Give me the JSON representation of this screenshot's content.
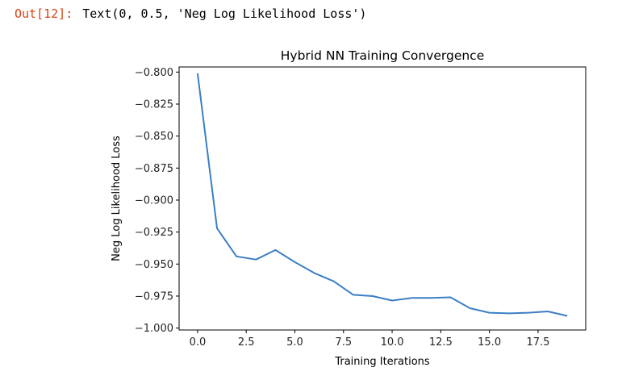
{
  "output_cell": {
    "prompt": "Out[12]:",
    "text": "Text(0, 0.5, 'Neg Log Likelihood Loss')"
  },
  "chart_data": {
    "type": "line",
    "title": "Hybrid NN Training Convergence",
    "xlabel": "Training Iterations",
    "ylabel": "Neg Log Likelihood Loss",
    "xlim": [
      -0.95,
      19.95
    ],
    "ylim": [
      -1.0,
      -0.8
    ],
    "xticks": [
      0.0,
      2.5,
      5.0,
      7.5,
      10.0,
      12.5,
      15.0,
      17.5
    ],
    "xtick_labels": [
      "0.0",
      "2.5",
      "5.0",
      "7.5",
      "10.0",
      "12.5",
      "15.0",
      "17.5"
    ],
    "yticks": [
      -0.8,
      -0.825,
      -0.85,
      -0.875,
      -0.9,
      -0.925,
      -0.95,
      -0.975,
      -1.0
    ],
    "ytick_labels": [
      "−0.800",
      "−0.825",
      "−0.850",
      "−0.875",
      "−0.900",
      "−0.925",
      "−0.950",
      "−0.975",
      "−1.000"
    ],
    "grid": false,
    "series": [
      {
        "color": "#3b7fc4",
        "x": [
          0,
          1,
          2,
          3,
          4,
          5,
          6,
          7,
          8,
          9,
          10,
          11,
          12,
          13,
          14,
          15,
          16,
          17,
          18,
          19
        ],
        "y": [
          -0.801,
          -0.922,
          -0.944,
          -0.9465,
          -0.939,
          -0.9485,
          -0.957,
          -0.9635,
          -0.974,
          -0.975,
          -0.9785,
          -0.9765,
          -0.9765,
          -0.976,
          -0.9845,
          -0.988,
          -0.9885,
          -0.988,
          -0.987,
          -0.9905
        ]
      }
    ]
  }
}
